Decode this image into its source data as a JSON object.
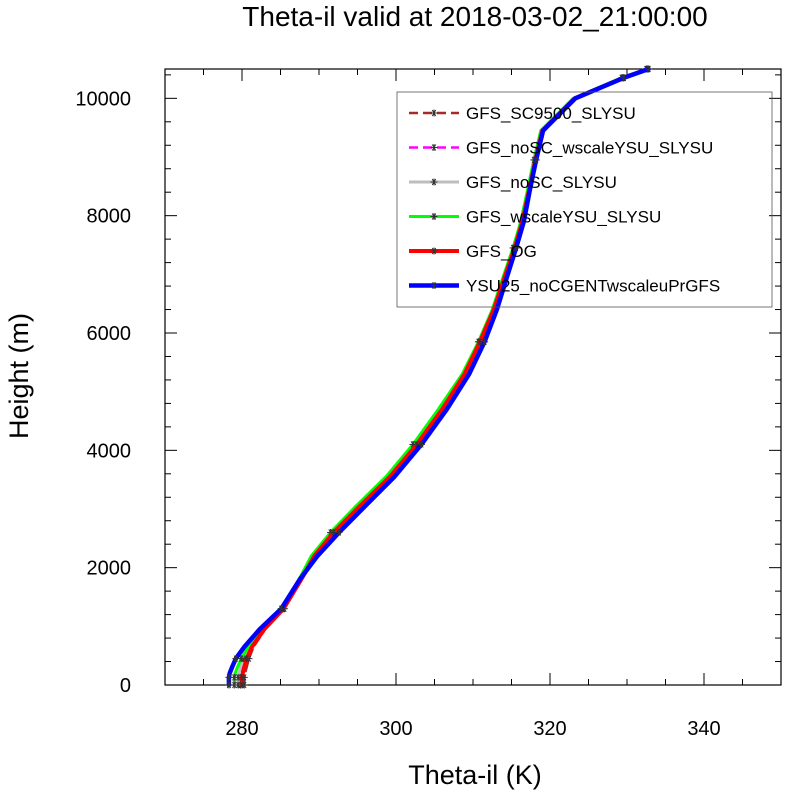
{
  "chart_data": {
    "type": "line",
    "title": "Theta-il valid at 2018-03-02_21:00:00",
    "xlabel": "Theta-il (K)",
    "ylabel": "Height (m)",
    "xlim": [
      270,
      350
    ],
    "ylim": [
      0,
      10500
    ],
    "xticks": [
      "280",
      "300",
      "320",
      "340"
    ],
    "yticks": [
      "0",
      "2000",
      "4000",
      "6000",
      "8000",
      "10000"
    ],
    "grid": false,
    "legend": "top-right",
    "marker": "asterisk",
    "series": [
      {
        "name": "GFS_SC9500_SLYSU",
        "color": "#a52a2a",
        "dash": "dashed",
        "x": [
          280.3,
          280.3,
          280.3,
          280.3,
          280.4,
          280.6,
          280.9,
          281.5,
          283.0,
          285.5,
          287.8,
          289.6,
          292.2,
          295.6,
          299.5,
          303.0,
          306.3,
          309.2,
          311.1,
          312.9,
          314.3,
          315.6,
          316.6,
          317.4,
          318.2,
          319.1,
          323.3,
          329.6,
          332.8
        ],
        "y": [
          0,
          30,
          80,
          130,
          200,
          300,
          450,
          650,
          950,
          1300,
          1800,
          2200,
          2600,
          3050,
          3550,
          4100,
          4700,
          5300,
          5850,
          6400,
          6950,
          7450,
          7900,
          8450,
          8950,
          9450,
          10000,
          10350,
          10500
        ]
      },
      {
        "name": "GFS_noSC_wscaleYSU_SLYSU",
        "color": "#ff00ff",
        "dash": "dashed",
        "x": [
          279.8,
          279.8,
          279.8,
          279.8,
          279.9,
          280.1,
          280.4,
          281.1,
          282.7,
          285.3,
          287.6,
          289.4,
          292.0,
          295.4,
          299.3,
          302.8,
          306.1,
          309.0,
          311.0,
          312.8,
          314.2,
          315.5,
          316.5,
          317.3,
          318.1,
          319.0,
          323.2,
          329.5,
          332.7
        ],
        "y": [
          0,
          30,
          80,
          130,
          200,
          300,
          450,
          650,
          950,
          1300,
          1800,
          2200,
          2600,
          3050,
          3550,
          4100,
          4700,
          5300,
          5850,
          6400,
          6950,
          7450,
          7900,
          8450,
          8950,
          9450,
          10000,
          10350,
          10500
        ]
      },
      {
        "name": "GFS_noSC_SLYSU",
        "color": "#bebebe",
        "dash": "solid",
        "x": [
          279.5,
          279.5,
          279.5,
          279.5,
          279.6,
          279.8,
          280.2,
          280.9,
          282.6,
          285.2,
          287.5,
          289.2,
          291.7,
          295.0,
          298.9,
          302.4,
          305.7,
          308.7,
          310.8,
          312.6,
          314.0,
          315.3,
          316.3,
          317.2,
          318.0,
          318.9,
          323.1,
          329.4,
          332.6
        ],
        "y": [
          0,
          30,
          80,
          130,
          200,
          300,
          450,
          650,
          950,
          1300,
          1800,
          2200,
          2600,
          3050,
          3550,
          4100,
          4700,
          5300,
          5850,
          6400,
          6950,
          7450,
          7900,
          8450,
          8950,
          9450,
          10000,
          10350,
          10500
        ]
      },
      {
        "name": "GFS_wscaleYSU_SLYSU",
        "color": "#00ff00",
        "dash": "solid",
        "x": [
          279.0,
          279.0,
          279.0,
          279.0,
          279.1,
          279.4,
          279.9,
          280.8,
          282.5,
          285.1,
          287.4,
          289.0,
          291.5,
          294.8,
          298.7,
          302.2,
          305.5,
          308.6,
          310.7,
          312.5,
          313.9,
          315.2,
          316.2,
          317.1,
          317.9,
          318.8,
          323.0,
          329.3,
          332.5
        ],
        "y": [
          0,
          30,
          80,
          130,
          200,
          300,
          450,
          650,
          950,
          1300,
          1800,
          2200,
          2600,
          3050,
          3550,
          4100,
          4700,
          5300,
          5850,
          6400,
          6950,
          7450,
          7900,
          8450,
          8950,
          9450,
          10000,
          10350,
          10500
        ]
      },
      {
        "name": "GFS_OG",
        "color": "#ff0000",
        "dash": "solid",
        "x": [
          280.0,
          280.0,
          280.0,
          280.0,
          280.1,
          280.3,
          280.6,
          281.3,
          282.9,
          285.4,
          287.7,
          289.4,
          291.9,
          295.3,
          299.2,
          302.7,
          306.0,
          308.9,
          310.9,
          312.7,
          314.1,
          315.4,
          316.4,
          317.3,
          318.1,
          319.0,
          323.2,
          329.5,
          332.7
        ],
        "y": [
          0,
          30,
          80,
          130,
          200,
          300,
          450,
          650,
          950,
          1300,
          1800,
          2200,
          2600,
          3050,
          3550,
          4100,
          4700,
          5300,
          5850,
          6400,
          6950,
          7450,
          7900,
          8450,
          8950,
          9450,
          10000,
          10350,
          10500
        ]
      },
      {
        "name": "YSU25_noCGENTwscaleuPrGFS",
        "color": "#0000ff",
        "dash": "solid",
        "x": [
          278.3,
          278.3,
          278.3,
          278.3,
          278.4,
          278.7,
          279.2,
          280.3,
          282.3,
          285.1,
          287.5,
          289.8,
          292.6,
          296.0,
          299.8,
          303.3,
          306.6,
          309.5,
          311.5,
          313.1,
          314.4,
          315.6,
          316.6,
          317.4,
          318.2,
          319.1,
          323.3,
          329.6,
          332.8
        ],
        "y": [
          0,
          30,
          80,
          130,
          200,
          300,
          450,
          650,
          950,
          1300,
          1800,
          2200,
          2600,
          3050,
          3550,
          4100,
          4700,
          5300,
          5850,
          6400,
          6950,
          7450,
          7900,
          8450,
          8950,
          9450,
          10000,
          10350,
          10500
        ]
      }
    ]
  }
}
